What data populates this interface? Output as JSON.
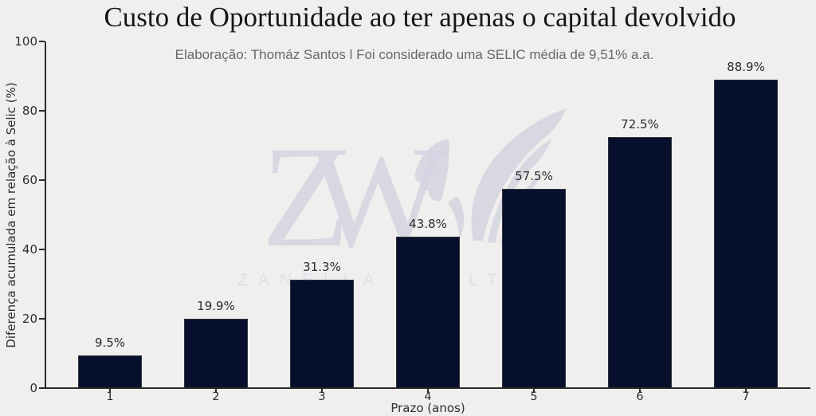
{
  "chart_data": {
    "type": "bar",
    "title": "Custo de Oportunidade ao ter apenas o capital devolvido",
    "subtitle": "Elaboração: Thomáz Santos l Foi considerado uma SELIC média de 9,51% a.a.",
    "categories": [
      "1",
      "2",
      "3",
      "4",
      "5",
      "6",
      "7"
    ],
    "values": [
      9.5,
      19.9,
      31.3,
      43.8,
      57.5,
      72.5,
      88.9
    ],
    "value_labels": [
      "9.5%",
      "19.9%",
      "31.3%",
      "43.8%",
      "57.5%",
      "72.5%",
      "88.9%"
    ],
    "xlabel": "Prazo (anos)",
    "ylabel": "Diferença acumulada em relação à Selic (%)",
    "ylim": [
      0,
      100
    ],
    "yticks": [
      0,
      20,
      40,
      60,
      80,
      100
    ],
    "grid": false,
    "legend": null,
    "colors": {
      "bar": "#06102c",
      "bar_edge": "#30303a",
      "background": "#f0efed",
      "spine": "#2b2b2b",
      "title_text": "#151515",
      "subtitle_text": "#686868",
      "tick_text": "#2e2e2e",
      "value_label_text": "#2b2b2b"
    }
  },
  "watermark": {
    "monogram_z": "Z",
    "monogram_w": "W",
    "word1": "ZANELLA",
    "word2": "WEALTH",
    "color": "#d4d4e2",
    "text_color": "#dedde9"
  }
}
